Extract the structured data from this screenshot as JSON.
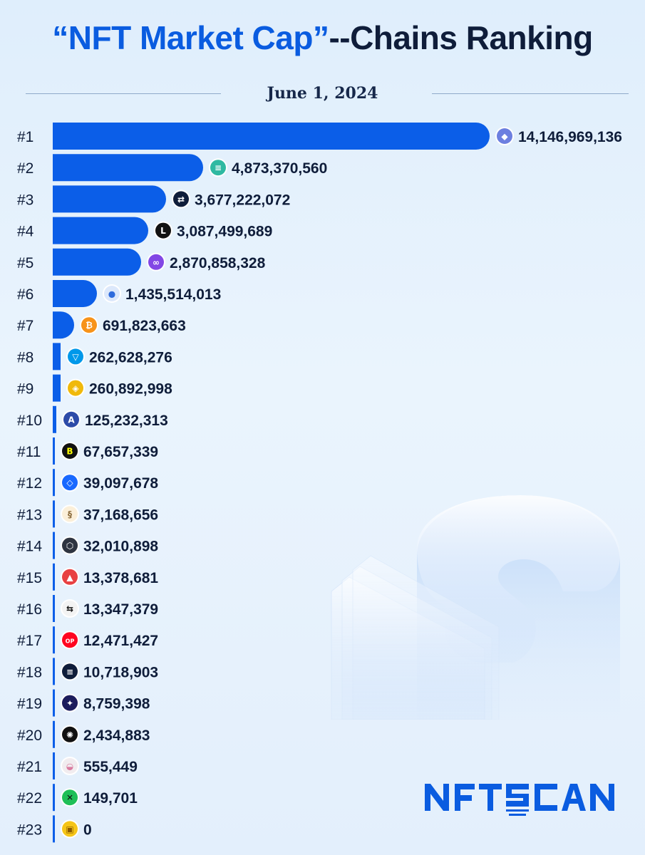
{
  "header": {
    "title_part1": "“NFT Market Cap”",
    "title_part2": "--Chains Ranking",
    "date": "June 1, 2024"
  },
  "colors": {
    "bar": "#0b5ee8",
    "title_blue": "#0a5ce0",
    "title_dark": "#0f1d3a",
    "text": "#0f1d3a"
  },
  "brand": {
    "logo_text": "NFTSCAN"
  },
  "chart_data": {
    "type": "bar",
    "orientation": "horizontal",
    "title": "“NFT Market Cap”--Chains Ranking",
    "subtitle": "June 1, 2024",
    "categories": [
      "#1",
      "#2",
      "#3",
      "#4",
      "#5",
      "#6",
      "#7",
      "#8",
      "#9",
      "#10",
      "#11",
      "#12",
      "#13",
      "#14",
      "#15",
      "#16",
      "#17",
      "#18",
      "#19",
      "#20",
      "#21",
      "#22",
      "#23"
    ],
    "values": [
      14146969136,
      4873370560,
      3677222072,
      3087499689,
      2870858328,
      1435514013,
      691823663,
      262628276,
      260892998,
      125232313,
      67657339,
      39097678,
      37168656,
      32010898,
      13378681,
      13347379,
      12471427,
      10718903,
      8759398,
      2434883,
      555449,
      149701,
      0
    ],
    "value_labels": [
      "14,146,969,136",
      "4,873,370,560",
      "3,677,222,072",
      "3,087,499,689",
      "2,870,858,328",
      "1,435,514,013",
      "691,823,663",
      "262,628,276",
      "260,892,998",
      "125,232,313",
      "67,657,339",
      "39,097,678",
      "37,168,656",
      "32,010,898",
      "13,378,681",
      "13,347,379",
      "12,471,427",
      "10,718,903",
      "8,759,398",
      "2,434,883",
      "555,449",
      "149,701",
      "0"
    ],
    "icons": [
      {
        "name": "ethereum-icon",
        "bg": "#6c7fe0",
        "fg": "#ffffff",
        "glyph": "◆"
      },
      {
        "name": "solana-icon",
        "bg": "#2fb9a2",
        "fg": "#ffffff",
        "glyph": "≡"
      },
      {
        "name": "swap-chain-icon",
        "bg": "#0f1d3a",
        "fg": "#ffffff",
        "glyph": "⇄"
      },
      {
        "name": "linea-icon",
        "bg": "#121212",
        "fg": "#ffffff",
        "glyph": "L"
      },
      {
        "name": "polygon-icon",
        "bg": "#8247e5",
        "fg": "#ffffff",
        "glyph": "∞"
      },
      {
        "name": "blue-sphere-icon",
        "bg": "#dce8fb",
        "fg": "#2f6bdc",
        "glyph": "●"
      },
      {
        "name": "bitcoin-icon",
        "bg": "#f7931a",
        "fg": "#ffffff",
        "glyph": "₿"
      },
      {
        "name": "ton-icon",
        "bg": "#0098ea",
        "fg": "#ffffff",
        "glyph": "▽"
      },
      {
        "name": "bnb-icon",
        "bg": "#f0b90b",
        "fg": "#ffffff",
        "glyph": "◈"
      },
      {
        "name": "arbitrum-icon",
        "bg": "#2d4ba8",
        "fg": "#ffffff",
        "glyph": "A"
      },
      {
        "name": "blast-icon",
        "bg": "#111111",
        "fg": "#fcfc03",
        "glyph": "B"
      },
      {
        "name": "fantom-icon",
        "bg": "#1969ff",
        "fg": "#ffffff",
        "glyph": "◇"
      },
      {
        "name": "scroll-icon",
        "bg": "#fbefd9",
        "fg": "#8a6a3a",
        "glyph": "§"
      },
      {
        "name": "gnosis-icon",
        "bg": "#2e3440",
        "fg": "#ffffff",
        "glyph": "⬡"
      },
      {
        "name": "avalanche-icon",
        "bg": "#e84142",
        "fg": "#ffffff",
        "glyph": "▲"
      },
      {
        "name": "zksync-icon",
        "bg": "#f3f3f3",
        "fg": "#111111",
        "glyph": "⇆"
      },
      {
        "name": "optimism-icon",
        "bg": "#ff0420",
        "fg": "#ffffff",
        "glyph": "OP"
      },
      {
        "name": "base-stripes-icon",
        "bg": "#0f1d3a",
        "fg": "#ffffff",
        "glyph": "≡"
      },
      {
        "name": "starknet-icon",
        "bg": "#1c1c5c",
        "fg": "#ffffff",
        "glyph": "✦"
      },
      {
        "name": "sunburst-icon",
        "bg": "#111111",
        "fg": "#ffffff",
        "glyph": "✺"
      },
      {
        "name": "ufo-icon",
        "bg": "#f1ecef",
        "fg": "#d97ca0",
        "glyph": "◒"
      },
      {
        "name": "x-chain-icon",
        "bg": "#1fbf57",
        "fg": "#111111",
        "glyph": "✕"
      },
      {
        "name": "gold-coin-icon",
        "bg": "#f5c518",
        "fg": "#8a5a00",
        "glyph": "▣"
      }
    ]
  }
}
